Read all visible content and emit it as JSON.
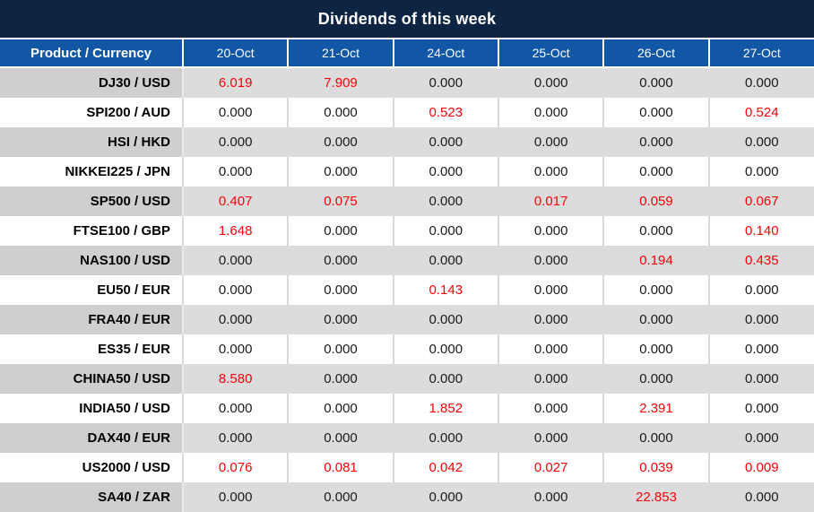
{
  "title": "Dividends of this week",
  "colors": {
    "title_bar": "#0e2443",
    "header_blue": "#1257a6",
    "gray_label": "#d0cece",
    "gray_value": "#dcdcdc",
    "divider": "#d9d9d9",
    "red": "#fb0007",
    "value_text": "#1a1a1a"
  },
  "table": {
    "product_header": "Product / Currency",
    "date_headers": [
      "20-Oct",
      "21-Oct",
      "24-Oct",
      "25-Oct",
      "26-Oct",
      "27-Oct"
    ],
    "rows": [
      {
        "product": "DJ30 / USD",
        "values": [
          "6.019",
          "7.909",
          "0.000",
          "0.000",
          "0.000",
          "0.000"
        ],
        "red": [
          true,
          true,
          false,
          false,
          false,
          false
        ]
      },
      {
        "product": "SPI200 / AUD",
        "values": [
          "0.000",
          "0.000",
          "0.523",
          "0.000",
          "0.000",
          "0.524"
        ],
        "red": [
          false,
          false,
          true,
          false,
          false,
          true
        ]
      },
      {
        "product": "HSI / HKD",
        "values": [
          "0.000",
          "0.000",
          "0.000",
          "0.000",
          "0.000",
          "0.000"
        ],
        "red": [
          false,
          false,
          false,
          false,
          false,
          false
        ]
      },
      {
        "product": "NIKKEI225 / JPN",
        "values": [
          "0.000",
          "0.000",
          "0.000",
          "0.000",
          "0.000",
          "0.000"
        ],
        "red": [
          false,
          false,
          false,
          false,
          false,
          false
        ]
      },
      {
        "product": "SP500 / USD",
        "values": [
          "0.407",
          "0.075",
          "0.000",
          "0.017",
          "0.059",
          "0.067"
        ],
        "red": [
          true,
          true,
          false,
          true,
          true,
          true
        ]
      },
      {
        "product": "FTSE100 / GBP",
        "values": [
          "1.648",
          "0.000",
          "0.000",
          "0.000",
          "0.000",
          "0.140"
        ],
        "red": [
          true,
          false,
          false,
          false,
          false,
          true
        ]
      },
      {
        "product": "NAS100 / USD",
        "values": [
          "0.000",
          "0.000",
          "0.000",
          "0.000",
          "0.194",
          "0.435"
        ],
        "red": [
          false,
          false,
          false,
          false,
          true,
          true
        ]
      },
      {
        "product": "EU50 / EUR",
        "values": [
          "0.000",
          "0.000",
          "0.143",
          "0.000",
          "0.000",
          "0.000"
        ],
        "red": [
          false,
          false,
          true,
          false,
          false,
          false
        ]
      },
      {
        "product": "FRA40 / EUR",
        "values": [
          "0.000",
          "0.000",
          "0.000",
          "0.000",
          "0.000",
          "0.000"
        ],
        "red": [
          false,
          false,
          false,
          false,
          false,
          false
        ]
      },
      {
        "product": "ES35 / EUR",
        "values": [
          "0.000",
          "0.000",
          "0.000",
          "0.000",
          "0.000",
          "0.000"
        ],
        "red": [
          false,
          false,
          false,
          false,
          false,
          false
        ]
      },
      {
        "product": "CHINA50 / USD",
        "values": [
          "8.580",
          "0.000",
          "0.000",
          "0.000",
          "0.000",
          "0.000"
        ],
        "red": [
          true,
          false,
          false,
          false,
          false,
          false
        ]
      },
      {
        "product": "INDIA50 / USD",
        "values": [
          "0.000",
          "0.000",
          "1.852",
          "0.000",
          "2.391",
          "0.000"
        ],
        "red": [
          false,
          false,
          true,
          false,
          true,
          false
        ]
      },
      {
        "product": "DAX40 / EUR",
        "values": [
          "0.000",
          "0.000",
          "0.000",
          "0.000",
          "0.000",
          "0.000"
        ],
        "red": [
          false,
          false,
          false,
          false,
          false,
          false
        ]
      },
      {
        "product": "US2000 / USD",
        "values": [
          "0.076",
          "0.081",
          "0.042",
          "0.027",
          "0.039",
          "0.009"
        ],
        "red": [
          true,
          true,
          true,
          true,
          true,
          true
        ]
      },
      {
        "product": "SA40 / ZAR",
        "values": [
          "0.000",
          "0.000",
          "0.000",
          "0.000",
          "22.853",
          "0.000"
        ],
        "red": [
          false,
          false,
          false,
          false,
          true,
          false
        ]
      }
    ]
  },
  "chart_data": {
    "type": "table",
    "title": "Dividends of this week",
    "row_header": "Product / Currency",
    "columns": [
      "20-Oct",
      "21-Oct",
      "24-Oct",
      "25-Oct",
      "26-Oct",
      "27-Oct"
    ],
    "rows": [
      {
        "product": "DJ30 / USD",
        "values": [
          6.019,
          7.909,
          0.0,
          0.0,
          0.0,
          0.0
        ]
      },
      {
        "product": "SPI200 / AUD",
        "values": [
          0.0,
          0.0,
          0.523,
          0.0,
          0.0,
          0.524
        ]
      },
      {
        "product": "HSI / HKD",
        "values": [
          0.0,
          0.0,
          0.0,
          0.0,
          0.0,
          0.0
        ]
      },
      {
        "product": "NIKKEI225 / JPN",
        "values": [
          0.0,
          0.0,
          0.0,
          0.0,
          0.0,
          0.0
        ]
      },
      {
        "product": "SP500 / USD",
        "values": [
          0.407,
          0.075,
          0.0,
          0.017,
          0.059,
          0.067
        ]
      },
      {
        "product": "FTSE100 / GBP",
        "values": [
          1.648,
          0.0,
          0.0,
          0.0,
          0.0,
          0.14
        ]
      },
      {
        "product": "NAS100 / USD",
        "values": [
          0.0,
          0.0,
          0.0,
          0.0,
          0.194,
          0.435
        ]
      },
      {
        "product": "EU50 / EUR",
        "values": [
          0.0,
          0.0,
          0.143,
          0.0,
          0.0,
          0.0
        ]
      },
      {
        "product": "FRA40 / EUR",
        "values": [
          0.0,
          0.0,
          0.0,
          0.0,
          0.0,
          0.0
        ]
      },
      {
        "product": "ES35 / EUR",
        "values": [
          0.0,
          0.0,
          0.0,
          0.0,
          0.0,
          0.0
        ]
      },
      {
        "product": "CHINA50 / USD",
        "values": [
          8.58,
          0.0,
          0.0,
          0.0,
          0.0,
          0.0
        ]
      },
      {
        "product": "INDIA50 / USD",
        "values": [
          0.0,
          0.0,
          1.852,
          0.0,
          2.391,
          0.0
        ]
      },
      {
        "product": "DAX40 / EUR",
        "values": [
          0.0,
          0.0,
          0.0,
          0.0,
          0.0,
          0.0
        ]
      },
      {
        "product": "US2000 / USD",
        "values": [
          0.076,
          0.081,
          0.042,
          0.027,
          0.039,
          0.009
        ]
      },
      {
        "product": "SA40 / ZAR",
        "values": [
          0.0,
          0.0,
          0.0,
          0.0,
          22.853,
          0.0
        ]
      }
    ],
    "notes": "Red-highlighted cells indicate non-zero dividend amounts; table rows alternate gray/white shading"
  }
}
